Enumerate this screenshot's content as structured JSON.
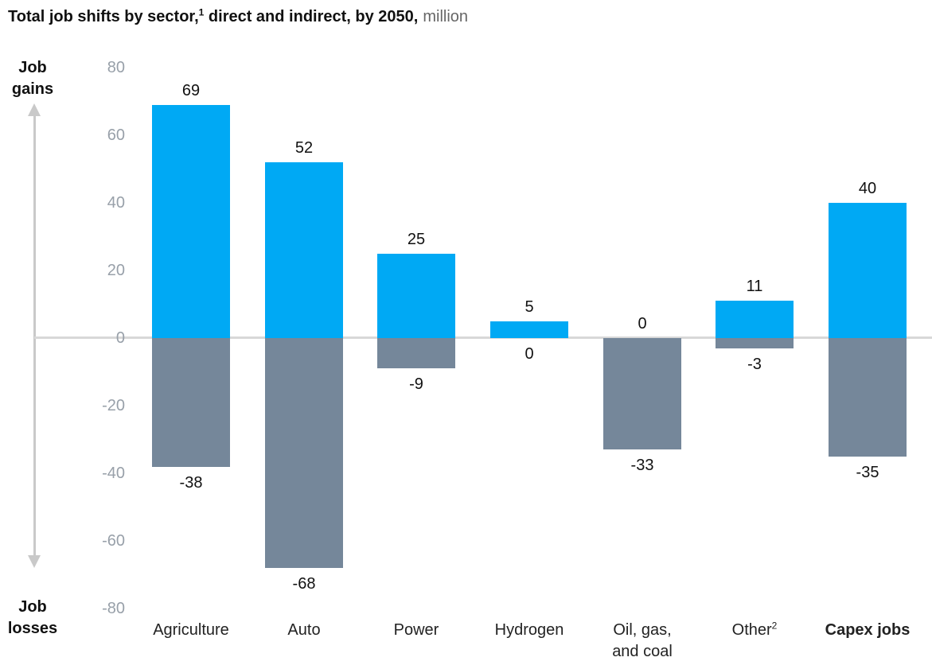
{
  "title": {
    "main_before_sup": "Total job shifts by sector,",
    "footnote_marker": "1",
    "main_after_sup": " direct and indirect, by 2050,",
    "unit": "million"
  },
  "axis": {
    "gains_label": "Job gains",
    "losses_label": "Job losses"
  },
  "colors": {
    "gain_bar": "#00a9f4",
    "loss_bar": "#75879a",
    "zero_line": "#d8d8d8",
    "arrow": "#c9c9c9",
    "tick_text": "#98a0a9"
  },
  "chart_data": {
    "type": "bar",
    "title": "Total job shifts by sector, direct and indirect, by 2050 (million)",
    "categories": [
      {
        "lines": [
          "Agriculture"
        ],
        "sup": "",
        "bold": false
      },
      {
        "lines": [
          "Auto"
        ],
        "sup": "",
        "bold": false
      },
      {
        "lines": [
          "Power"
        ],
        "sup": "",
        "bold": false
      },
      {
        "lines": [
          "Hydrogen"
        ],
        "sup": "",
        "bold": false
      },
      {
        "lines": [
          "Oil, gas,",
          "and coal"
        ],
        "sup": "",
        "bold": false
      },
      {
        "lines": [
          "Other"
        ],
        "sup": "2",
        "bold": false
      },
      {
        "lines": [
          "Capex jobs"
        ],
        "sup": "",
        "bold": true
      }
    ],
    "series": [
      {
        "name": "Job gains",
        "values": [
          69,
          52,
          25,
          5,
          0,
          11,
          40
        ]
      },
      {
        "name": "Job losses",
        "values": [
          -38,
          -68,
          -9,
          0,
          -33,
          -3,
          -35
        ]
      }
    ],
    "ylim": [
      -80,
      80
    ],
    "yticks": [
      80,
      60,
      40,
      20,
      0,
      -20,
      -40,
      -60,
      -80
    ],
    "legend": "none",
    "grid": false
  }
}
